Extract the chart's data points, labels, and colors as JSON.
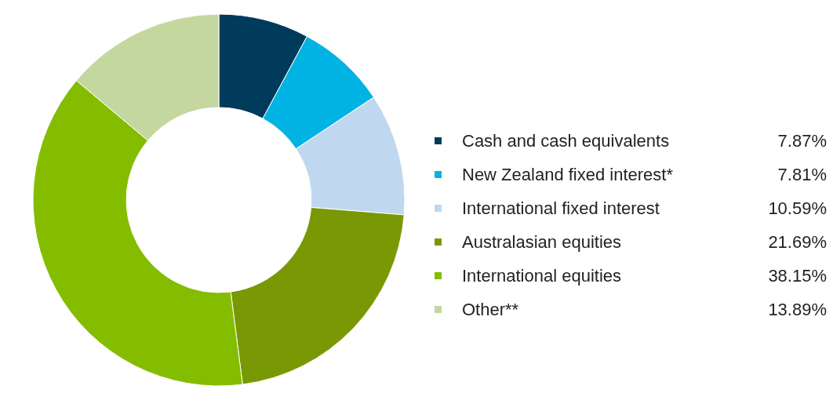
{
  "chart_data": {
    "type": "donut",
    "categories": [
      "Cash and cash equivalents",
      "New Zealand fixed interest*",
      "International fixed interest",
      "Australasian equities",
      "International equities",
      "Other**"
    ],
    "values": [
      7.87,
      7.81,
      10.59,
      21.69,
      38.15,
      13.89
    ],
    "colors": [
      "#003b5c",
      "#00b3e3",
      "#bfd8ef",
      "#789904",
      "#84bd00",
      "#c4d79f"
    ],
    "value_labels": [
      "7.87%",
      "7.81%",
      "10.59%",
      "21.69%",
      "38.15%",
      "13.89%"
    ],
    "legend": "right"
  }
}
